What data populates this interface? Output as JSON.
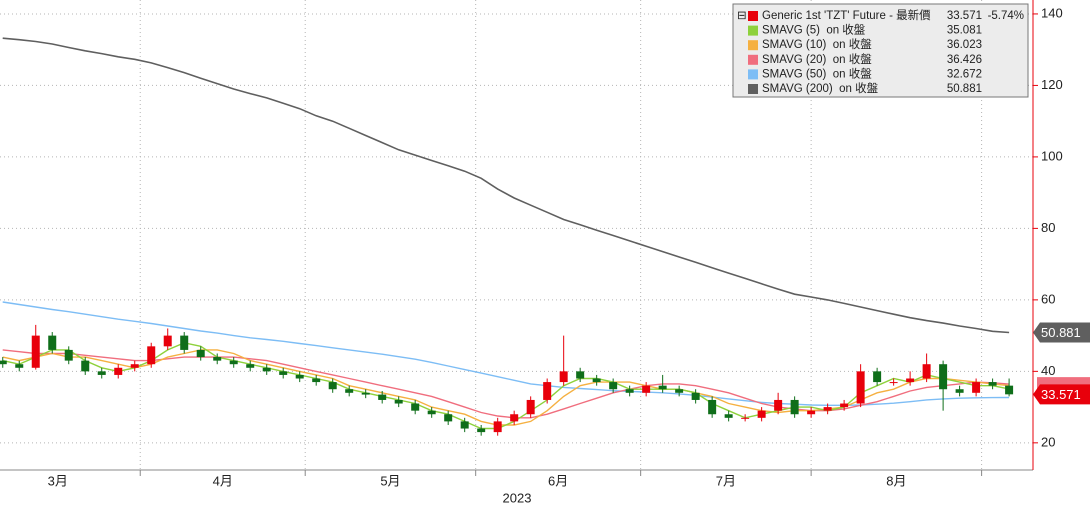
{
  "chart_data": {
    "type": "candlestick",
    "x": [
      -25,
      -22,
      -19,
      -16,
      -13,
      -10,
      -7,
      -4,
      -1,
      2,
      5,
      8,
      11,
      14,
      17,
      20,
      23,
      26,
      29,
      32,
      35,
      38,
      41,
      44,
      47,
      50,
      53,
      56,
      59,
      62,
      65,
      68,
      71,
      74,
      77,
      80,
      83,
      86,
      89,
      92,
      95,
      98,
      101,
      104,
      107,
      110,
      113,
      116,
      119,
      122,
      125,
      128,
      131,
      134,
      137,
      140,
      143,
      146,
      149,
      152,
      155,
      158
    ],
    "candles": {
      "name": "Generic 1st 'TZT' Future - 最新價",
      "change_label": "-5.74%",
      "up_color": "#e8000b",
      "down_color": "#0f6e1a",
      "open": [
        43,
        42,
        41,
        50,
        46,
        43,
        40,
        39,
        41,
        42,
        47,
        50,
        46,
        44,
        43,
        42,
        41,
        40,
        39,
        38,
        37,
        35,
        34,
        33.5,
        32,
        31,
        29,
        28,
        26,
        24,
        23,
        26,
        28,
        32,
        37,
        40,
        38,
        37,
        35,
        34,
        36,
        35,
        34,
        32,
        28,
        27,
        27,
        29,
        32,
        28,
        29,
        30,
        31,
        40,
        37,
        37,
        38,
        42,
        35,
        34,
        37,
        36
      ],
      "high": [
        44,
        43,
        53,
        51,
        47,
        44,
        41,
        42,
        43,
        48,
        52,
        51,
        47,
        45,
        44,
        43,
        42,
        41,
        40,
        39,
        38,
        36,
        35,
        34.5,
        33,
        32,
        30,
        29,
        27,
        25,
        27,
        29,
        33,
        38,
        50,
        41,
        39,
        38,
        36,
        37,
        39,
        36,
        35,
        33,
        29,
        28,
        30,
        34,
        33,
        30,
        31,
        32,
        42,
        41,
        38,
        40,
        45,
        43,
        36,
        38,
        38,
        38
      ],
      "low": [
        41,
        40,
        40.5,
        45,
        42,
        39,
        38,
        38,
        40,
        41,
        46,
        45,
        43,
        42,
        41,
        40,
        39,
        38,
        37,
        36,
        34,
        33,
        32.5,
        31,
        30,
        28,
        27,
        25,
        23,
        22,
        22,
        25,
        27,
        31,
        36,
        37,
        36,
        34,
        33,
        33,
        34,
        33,
        31,
        27,
        26,
        26,
        26,
        28,
        27,
        27,
        28,
        29,
        30,
        36,
        36,
        36,
        37,
        29,
        33,
        33,
        35,
        33
      ],
      "close": [
        42,
        41,
        50,
        46,
        43,
        40,
        39,
        41,
        42,
        47,
        50,
        46,
        44,
        43,
        42,
        41,
        40,
        39,
        38,
        37,
        35,
        34,
        33.5,
        32,
        31,
        29,
        28,
        26,
        24,
        23,
        26,
        28,
        32,
        37,
        40,
        38,
        37,
        35,
        34,
        36,
        35,
        34,
        32,
        28,
        27,
        27,
        29,
        32,
        28,
        29,
        30,
        31,
        40,
        37,
        37,
        38,
        42,
        35,
        34,
        37,
        36,
        33.571
      ]
    },
    "series": [
      {
        "name": "SMAVG (5)  on 收盤",
        "color": "#8ed13c",
        "values": [
          43,
          42,
          44,
          46,
          46,
          43,
          41,
          40,
          41,
          43,
          46,
          48,
          47,
          44,
          43,
          42,
          41,
          40,
          39,
          38,
          37,
          35,
          34,
          33,
          32,
          31,
          29,
          28,
          26,
          24,
          24,
          26,
          29,
          32,
          36,
          38,
          38,
          37,
          35,
          35,
          35,
          35,
          34,
          31,
          29,
          27,
          28,
          29,
          30,
          30,
          29,
          30,
          34,
          36,
          38,
          37,
          39,
          38,
          37,
          36,
          36,
          35.081
        ]
      },
      {
        "name": "SMAVG (10)  on 收盤",
        "color": "#f5b041",
        "values": [
          44,
          43,
          44,
          45,
          44,
          44,
          43,
          42,
          41,
          42,
          44,
          45,
          46,
          46,
          45,
          43,
          42,
          41,
          40,
          39,
          38,
          36,
          35,
          34,
          33,
          32,
          30,
          29,
          28,
          26,
          25,
          25,
          26,
          29,
          33,
          36,
          37,
          37,
          37,
          36,
          35,
          35,
          34,
          33,
          31,
          30,
          29,
          28.5,
          29,
          29,
          29.5,
          30,
          32,
          34,
          35,
          37,
          38,
          38,
          37.5,
          37,
          36.5,
          36.023
        ]
      },
      {
        "name": "SMAVG (20)  on 收盤",
        "color": "#f06e7e",
        "values": [
          46,
          45.5,
          45,
          45,
          45,
          44.5,
          44,
          43.5,
          43,
          43,
          43.5,
          44,
          44,
          44,
          44,
          43.5,
          43,
          42,
          41,
          40,
          39,
          38,
          37,
          36,
          35,
          34,
          33,
          31.5,
          30,
          28.5,
          27.5,
          27,
          27,
          28,
          29.5,
          31,
          32.5,
          34,
          35,
          36,
          36.5,
          36.5,
          36,
          35,
          34,
          32.5,
          31,
          30,
          29.5,
          29,
          29,
          29.5,
          30.5,
          31.5,
          33,
          34.5,
          35.5,
          36,
          36.5,
          37,
          36.8,
          36.426
        ]
      },
      {
        "name": "SMAVG (50)  on 收盤",
        "color": "#7dbdf5",
        "values": [
          59.4,
          58.7,
          58,
          57.3,
          56.7,
          56,
          55.3,
          54.6,
          54,
          53.4,
          52.7,
          52,
          51.3,
          50.7,
          50,
          49.4,
          48.9,
          48.4,
          47.8,
          47.2,
          46.6,
          46,
          45.4,
          44.8,
          44.1,
          43.4,
          42.5,
          41.5,
          40.5,
          39.5,
          38.5,
          37.5,
          36.5,
          36,
          35.5,
          35.2,
          34.9,
          34.6,
          34.4,
          34.2,
          34,
          33.7,
          33.3,
          32.8,
          32.3,
          31.8,
          31.3,
          31,
          30.8,
          30.6,
          30.5,
          30.5,
          30.6,
          30.8,
          31.1,
          31.5,
          32,
          32.3,
          32.5,
          32.6,
          32.65,
          32.672
        ]
      },
      {
        "name": "SMAVG (200)  on 收盤",
        "color": "#5f5f5f",
        "values": [
          133.2,
          132.8,
          132.3,
          131.6,
          130.6,
          129.7,
          128.9,
          128,
          127.3,
          126.3,
          125,
          123.6,
          122,
          120.5,
          119,
          117.7,
          116.5,
          115,
          113.5,
          111.5,
          110,
          108,
          106,
          104,
          102,
          100.5,
          99,
          97.5,
          96,
          94,
          91,
          88.5,
          86.5,
          84.5,
          82.5,
          81,
          79.5,
          78,
          76.5,
          75,
          73.5,
          72,
          70.5,
          69,
          67.5,
          66,
          64.5,
          63,
          61.6,
          60.8,
          60,
          59,
          58,
          57,
          56,
          55,
          54.2,
          53.5,
          52.7,
          52,
          51.2,
          50.881
        ]
      }
    ],
    "xlim": [
      -25.5,
      161.8
    ],
    "ylim": [
      12.4,
      143.9
    ],
    "yticks": [
      20,
      40,
      60,
      80,
      100,
      120,
      140
    ],
    "xticks": [
      {
        "value": -15,
        "label": "3月"
      },
      {
        "value": 15,
        "label": "4月"
      },
      {
        "value": 45.5,
        "label": "5月"
      },
      {
        "value": 76,
        "label": "6月"
      },
      {
        "value": 106.5,
        "label": "7月"
      },
      {
        "value": 137.5,
        "label": "8月"
      }
    ],
    "xgrid": [
      0,
      30,
      61,
      91,
      122,
      153
    ],
    "x_title": "2023",
    "grid": true
  }
}
